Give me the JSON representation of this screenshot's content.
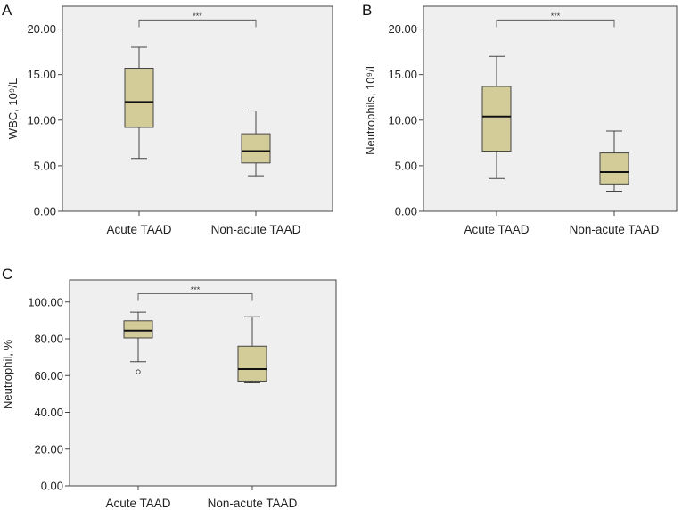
{
  "chart_data": [
    {
      "type": "box",
      "panel": "A",
      "ylabel": "WBC, 10⁹/L",
      "ylim": [
        0,
        22.5
      ],
      "yticks": [
        0,
        5,
        10,
        15,
        20
      ],
      "ytick_labels": [
        "0.00",
        "5.00",
        "10.00",
        "15.00",
        "20.00"
      ],
      "categories": [
        "Acute TAAD",
        "Non-acute TAAD"
      ],
      "boxes": [
        {
          "name": "Acute TAAD",
          "min": 5.8,
          "q1": 9.2,
          "median": 12.0,
          "q3": 15.7,
          "max": 18.0,
          "outliers": []
        },
        {
          "name": "Non-acute TAAD",
          "min": 3.9,
          "q1": 5.3,
          "median": 6.6,
          "q3": 8.5,
          "max": 11.0,
          "outliers": []
        }
      ],
      "significance": {
        "label": "***",
        "level": 21.0
      }
    },
    {
      "type": "box",
      "panel": "B",
      "ylabel": "Neutrophils, 10⁹/L",
      "ylim": [
        0,
        22.5
      ],
      "yticks": [
        0,
        5,
        10,
        15,
        20
      ],
      "ytick_labels": [
        "0.00",
        "5.00",
        "10.00",
        "15.00",
        "20.00"
      ],
      "categories": [
        "Acute TAAD",
        "Non-acute TAAD"
      ],
      "boxes": [
        {
          "name": "Acute TAAD",
          "min": 3.6,
          "q1": 6.6,
          "median": 10.4,
          "q3": 13.7,
          "max": 17.0,
          "outliers": []
        },
        {
          "name": "Non-acute TAAD",
          "min": 2.2,
          "q1": 3.0,
          "median": 4.3,
          "q3": 6.4,
          "max": 8.8,
          "outliers": []
        }
      ],
      "significance": {
        "label": "***",
        "level": 21.0
      }
    },
    {
      "type": "box",
      "panel": "C",
      "ylabel": "Neutrophil, %",
      "ylim": [
        0,
        112
      ],
      "yticks": [
        0,
        20,
        40,
        60,
        80,
        100
      ],
      "ytick_labels": [
        "0.00",
        "20.00",
        "40.00",
        "60.00",
        "80.00",
        "100.00"
      ],
      "categories": [
        "Acute TAAD",
        "Non-acute TAAD"
      ],
      "boxes": [
        {
          "name": "Acute TAAD",
          "min": 67.5,
          "q1": 80.5,
          "median": 84.5,
          "q3": 89.8,
          "max": 94.5,
          "outliers": [
            62.0
          ]
        },
        {
          "name": "Non-acute TAAD",
          "min": 56.0,
          "q1": 57.0,
          "median": 63.5,
          "q3": 76.0,
          "max": 92.0,
          "outliers": []
        }
      ],
      "significance": {
        "label": "***",
        "level": 104.5
      }
    }
  ]
}
